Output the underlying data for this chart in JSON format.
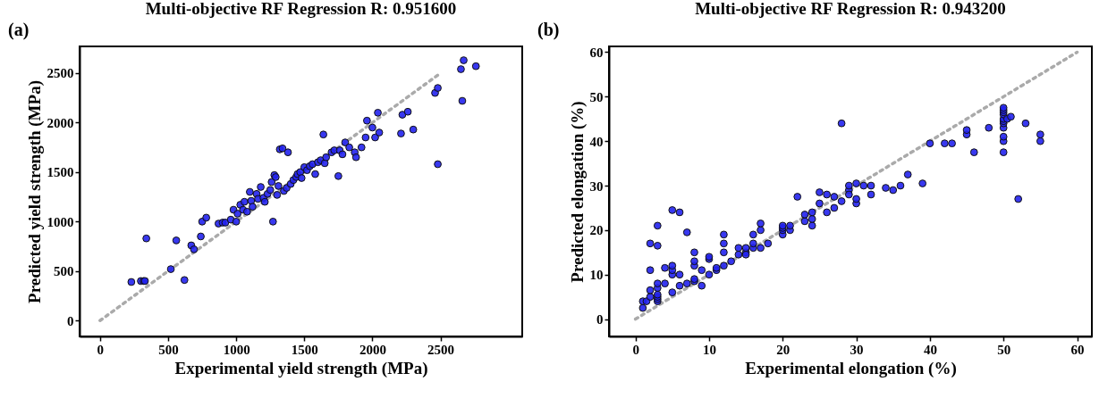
{
  "chart_data": [
    {
      "type": "scatter",
      "title": "Multi-objective RF Regression R: 0.951600",
      "xlabel": "Experimental yield strength (MPa)",
      "ylabel": "Predicted yield strength (MPa)",
      "annotations": [
        "(a)"
      ],
      "xlim": [
        -150,
        3100
      ],
      "ylim": [
        -160,
        2770
      ],
      "xticks": [
        0,
        500,
        1000,
        1500,
        2000,
        2500
      ],
      "yticks": [
        0,
        500,
        1000,
        1500,
        2000,
        2500
      ],
      "grid": false,
      "series": [
        {
          "type": "line",
          "color": "#aaaaaa",
          "line_style": "dotted",
          "x": [
            0,
            2500
          ],
          "values": [
            0,
            2500
          ]
        },
        {
          "type": "scatter",
          "color": "#2222ee",
          "marker": "circle",
          "x": [
            230,
            300,
            320,
            330,
            340,
            520,
            560,
            620,
            670,
            690,
            740,
            750,
            780,
            870,
            900,
            920,
            960,
            980,
            1000,
            1010,
            1030,
            1050,
            1060,
            1080,
            1100,
            1110,
            1120,
            1150,
            1160,
            1180,
            1200,
            1210,
            1230,
            1250,
            1260,
            1270,
            1280,
            1290,
            1300,
            1310,
            1320,
            1340,
            1350,
            1370,
            1380,
            1400,
            1420,
            1440,
            1450,
            1470,
            1480,
            1500,
            1520,
            1540,
            1560,
            1580,
            1600,
            1620,
            1640,
            1650,
            1660,
            1700,
            1720,
            1750,
            1760,
            1780,
            1800,
            1830,
            1870,
            1880,
            1920,
            1950,
            1960,
            2000,
            2020,
            2040,
            2050,
            2210,
            2220,
            2260,
            2300,
            2460,
            2480,
            2480,
            2650,
            2660,
            2670,
            2760
          ],
          "values": [
            390,
            400,
            400,
            400,
            830,
            520,
            810,
            410,
            760,
            720,
            850,
            1000,
            1040,
            980,
            990,
            990,
            1020,
            1120,
            1000,
            1080,
            1170,
            1120,
            1200,
            1100,
            1300,
            1210,
            1150,
            1280,
            1230,
            1350,
            1240,
            1200,
            1280,
            1320,
            1400,
            1000,
            1470,
            1450,
            1270,
            1360,
            1730,
            1740,
            1310,
            1340,
            1700,
            1380,
            1420,
            1450,
            1480,
            1500,
            1440,
            1550,
            1520,
            1560,
            1580,
            1480,
            1600,
            1620,
            1880,
            1590,
            1650,
            1700,
            1720,
            1460,
            1720,
            1680,
            1800,
            1750,
            1700,
            1650,
            1750,
            1850,
            2020,
            1950,
            1850,
            2100,
            1900,
            1890,
            2080,
            2110,
            1930,
            2300,
            2350,
            1580,
            2540,
            2220,
            2630,
            2570
          ]
        }
      ]
    },
    {
      "type": "scatter",
      "title": "Multi-objective RF Regression R: 0.943200",
      "xlabel": "Experimental elongation (%)",
      "ylabel": "Predicted elongation (%)",
      "annotations": [
        "(b)"
      ],
      "xlim": [
        -3.6,
        62
      ],
      "ylim": [
        -3.9,
        61.3
      ],
      "xticks": [
        0,
        10,
        20,
        30,
        40,
        50,
        60
      ],
      "yticks": [
        0,
        10,
        20,
        30,
        40,
        50,
        60
      ],
      "grid": false,
      "series": [
        {
          "type": "line",
          "color": "#aaaaaa",
          "line_style": "dotted",
          "x": [
            0,
            60
          ],
          "values": [
            0,
            60
          ]
        },
        {
          "type": "scatter",
          "color": "#2222ee",
          "marker": "circle",
          "x": [
            1,
            1,
            1.5,
            2,
            2,
            2,
            2,
            3,
            3,
            3,
            3,
            3,
            3,
            3,
            3,
            4,
            4,
            5,
            5,
            5,
            5,
            5,
            6,
            6,
            6,
            7,
            7,
            8,
            8,
            8,
            8,
            8,
            9,
            9,
            10,
            10,
            10,
            11,
            11,
            12,
            12,
            12,
            12,
            13,
            14,
            14,
            15,
            15,
            15,
            16,
            16,
            16,
            17,
            17,
            17,
            18,
            20,
            20,
            20,
            20,
            21,
            21,
            22,
            23,
            23,
            24,
            24,
            24,
            25,
            25,
            26,
            26,
            27,
            27,
            28,
            28,
            29,
            29,
            29,
            30,
            30,
            30,
            31,
            32,
            32,
            34,
            35,
            36,
            37,
            39,
            40,
            42,
            43,
            45,
            45,
            46,
            48,
            50,
            50,
            50,
            50,
            50,
            50,
            50,
            50,
            50,
            50,
            50,
            50.5,
            51,
            52,
            53,
            55,
            55
          ],
          "values": [
            2.5,
            4,
            4,
            5,
            6.5,
            11,
            17,
            4,
            4.5,
            5,
            5.5,
            7,
            8,
            16.5,
            21,
            8,
            11.5,
            6,
            10,
            11,
            12,
            24.5,
            10,
            24,
            7.5,
            19.5,
            8,
            8.5,
            9,
            12,
            13,
            15,
            7.5,
            11,
            10,
            13.5,
            14,
            11,
            11.5,
            12,
            15,
            17,
            19,
            13,
            14.5,
            16,
            15,
            16,
            14.5,
            16,
            17,
            19,
            16,
            20,
            21.5,
            17,
            19,
            20,
            20.5,
            21,
            20,
            21,
            27.5,
            22,
            23.5,
            21,
            22.5,
            24,
            26,
            28.5,
            24,
            28,
            25,
            27.5,
            44,
            26.5,
            29,
            30,
            28,
            26,
            27,
            30.5,
            30,
            28,
            30,
            29.5,
            29,
            30,
            32.5,
            30.5,
            39.5,
            39.5,
            39.5,
            41.5,
            42.5,
            37.5,
            43,
            37.5,
            40,
            41,
            43,
            44,
            44.5,
            45,
            46,
            46.5,
            47,
            47.5,
            45,
            45.5,
            27,
            44,
            40,
            41.5
          ]
        }
      ]
    }
  ]
}
